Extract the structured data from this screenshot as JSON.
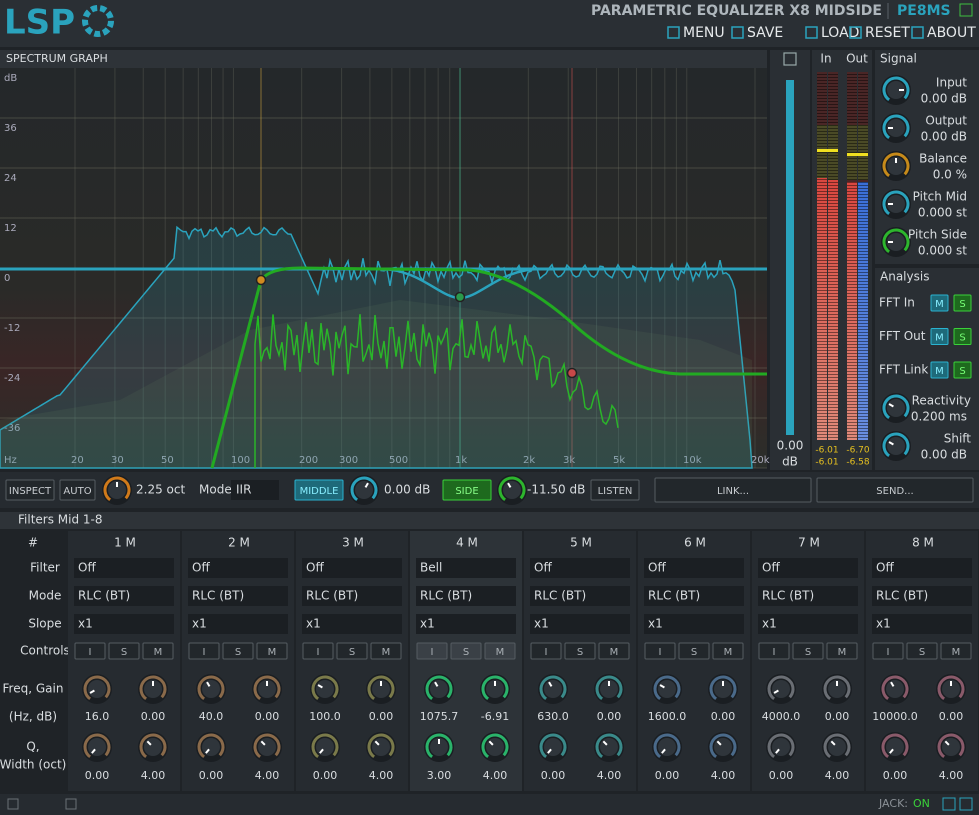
{
  "header": {
    "logo": "LSP",
    "title": "PARAMETRIC EQUALIZER X8 MIDSIDE",
    "code": "PE8MS",
    "menu": [
      "MENU",
      "SAVE",
      "LOAD",
      "RESET",
      "ABOUT"
    ]
  },
  "graph": {
    "title": "SPECTRUM GRAPH",
    "unit": "dB",
    "y_labels": [
      "36",
      "24",
      "12",
      "0",
      "-12",
      "-24",
      "-36"
    ],
    "x_labels": [
      "Hz",
      "20",
      "30",
      "50",
      "100",
      "200",
      "300",
      "500",
      "1k",
      "2k",
      "3k",
      "5k",
      "10k",
      "20k"
    ]
  },
  "gain_slider": {
    "value": "0.00",
    "unit": "dB"
  },
  "meters": {
    "in_label": "In",
    "out_label": "Out",
    "in_values": [
      "-6.01",
      "-6.01"
    ],
    "out_values": [
      "-6.70",
      "-6.58"
    ]
  },
  "signal": {
    "title": "Signal",
    "knobs": [
      {
        "label": "Input",
        "value": "0.00 dB"
      },
      {
        "label": "Output",
        "value": "0.00 dB"
      },
      {
        "label": "Balance",
        "value": "0.0 %"
      },
      {
        "label": "Pitch Mid",
        "value": "0.000 st"
      },
      {
        "label": "Pitch Side",
        "value": "0.000 st"
      }
    ]
  },
  "analysis": {
    "title": "Analysis",
    "fft": [
      {
        "label": "FFT In",
        "buttons": [
          "M",
          "S"
        ]
      },
      {
        "label": "FFT Out",
        "buttons": [
          "M",
          "S"
        ]
      },
      {
        "label": "FFT Link",
        "buttons": [
          "M",
          "S"
        ]
      }
    ],
    "knobs": [
      {
        "label": "Reactivity",
        "value": "0.200 ms"
      },
      {
        "label": "Shift",
        "value": "0.00 dB"
      }
    ]
  },
  "toolbar": {
    "inspect": "INSPECT",
    "auto": "AUTO",
    "range": "2.25 oct",
    "mode_label": "Mode",
    "mode": "IIR",
    "middle": "MIDDLE",
    "middle_gain": "0.00 dB",
    "side": "SIDE",
    "side_gain": "-11.50 dB",
    "listen": "LISTEN",
    "link": "LINK...",
    "send": "SEND..."
  },
  "filters": {
    "title": "Filters Mid 1-8",
    "row_labels": [
      "#",
      "Filter",
      "Mode",
      "Slope",
      "Controls",
      "Freq, Gain",
      "(Hz, dB)",
      "Q,",
      "Width (oct)"
    ],
    "control_buttons": [
      "I",
      "S",
      "M"
    ],
    "columns": [
      {
        "name": "1 M",
        "filter": "Off",
        "mode": "RLC (BT)",
        "slope": "x1",
        "freq": "16.0",
        "gain": "0.00",
        "q": "0.00",
        "width": "4.00"
      },
      {
        "name": "2 M",
        "filter": "Off",
        "mode": "RLC (BT)",
        "slope": "x1",
        "freq": "40.0",
        "gain": "0.00",
        "q": "0.00",
        "width": "4.00"
      },
      {
        "name": "3 M",
        "filter": "Off",
        "mode": "RLC (BT)",
        "slope": "x1",
        "freq": "100.0",
        "gain": "0.00",
        "q": "0.00",
        "width": "4.00"
      },
      {
        "name": "4 M",
        "filter": "Bell",
        "mode": "RLC (BT)",
        "slope": "x1",
        "freq": "1075.7",
        "gain": "-6.91",
        "q": "3.00",
        "width": "4.00"
      },
      {
        "name": "5 M",
        "filter": "Off",
        "mode": "RLC (BT)",
        "slope": "x1",
        "freq": "630.0",
        "gain": "0.00",
        "q": "0.00",
        "width": "4.00"
      },
      {
        "name": "6 M",
        "filter": "Off",
        "mode": "RLC (BT)",
        "slope": "x1",
        "freq": "1600.0",
        "gain": "0.00",
        "q": "0.00",
        "width": "4.00"
      },
      {
        "name": "7 M",
        "filter": "Off",
        "mode": "RLC (BT)",
        "slope": "x1",
        "freq": "4000.0",
        "gain": "0.00",
        "q": "0.00",
        "width": "4.00"
      },
      {
        "name": "8 M",
        "filter": "Off",
        "mode": "RLC (BT)",
        "slope": "x1",
        "freq": "10000.0",
        "gain": "0.00",
        "q": "0.00",
        "width": "4.00"
      }
    ]
  },
  "footer": {
    "jack": "JACK:",
    "status": "ON"
  }
}
